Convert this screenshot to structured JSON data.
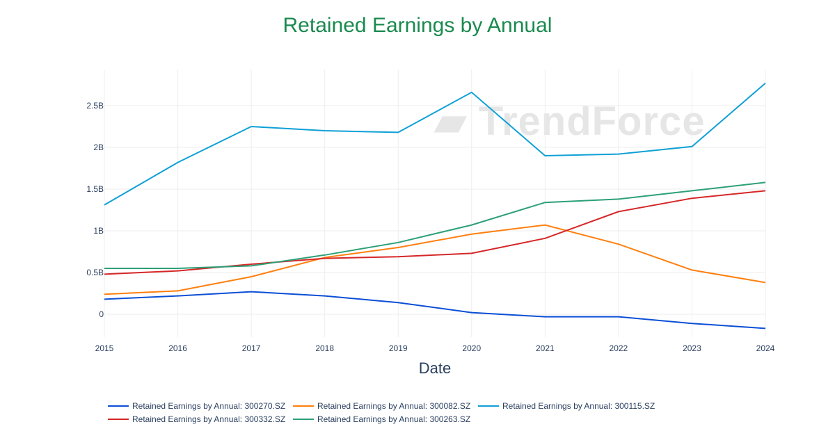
{
  "chart_data": {
    "type": "line",
    "title": "Retained Earnings by Annual",
    "xlabel": "Date",
    "ylabel": "",
    "x": [
      2015,
      2016,
      2017,
      2018,
      2019,
      2020,
      2021,
      2022,
      2023,
      2024
    ],
    "xlim": [
      2015,
      2024
    ],
    "ylim": [
      -0.25,
      2.95
    ],
    "yunit": "B",
    "yticks": [
      0,
      0.5,
      1,
      1.5,
      2,
      2.5
    ],
    "ytick_labels": [
      "0",
      "0.5B",
      "1B",
      "1.5B",
      "2B",
      "2.5B"
    ],
    "grid": true,
    "legend": "bottom",
    "watermark": "TrendForce",
    "series": [
      {
        "name": "Retained Earnings by Annual: 300270.SZ",
        "color": "#0b4fd6",
        "values": [
          0.18,
          0.22,
          0.27,
          0.22,
          0.14,
          0.02,
          -0.03,
          -0.03,
          -0.11,
          -0.17
        ]
      },
      {
        "name": "Retained Earnings by Annual: 300082.SZ",
        "color": "#ff7f0e",
        "values": [
          0.24,
          0.28,
          0.45,
          0.68,
          0.8,
          0.96,
          1.07,
          0.84,
          0.53,
          0.38
        ]
      },
      {
        "name": "Retained Earnings by Annual: 300115.SZ",
        "color": "#0ea0d6",
        "values": [
          1.31,
          1.82,
          2.25,
          2.2,
          2.18,
          2.66,
          1.9,
          1.92,
          2.01,
          2.77
        ]
      },
      {
        "name": "Retained Earnings by Annual: 300332.SZ",
        "color": "#d62728",
        "values": [
          0.48,
          0.52,
          0.6,
          0.67,
          0.69,
          0.73,
          0.91,
          1.23,
          1.39,
          1.48
        ]
      },
      {
        "name": "Retained Earnings by Annual: 300263.SZ",
        "color": "#2ca077",
        "values": [
          0.55,
          0.55,
          0.58,
          0.71,
          0.86,
          1.07,
          1.34,
          1.38,
          1.48,
          1.58
        ]
      }
    ]
  }
}
